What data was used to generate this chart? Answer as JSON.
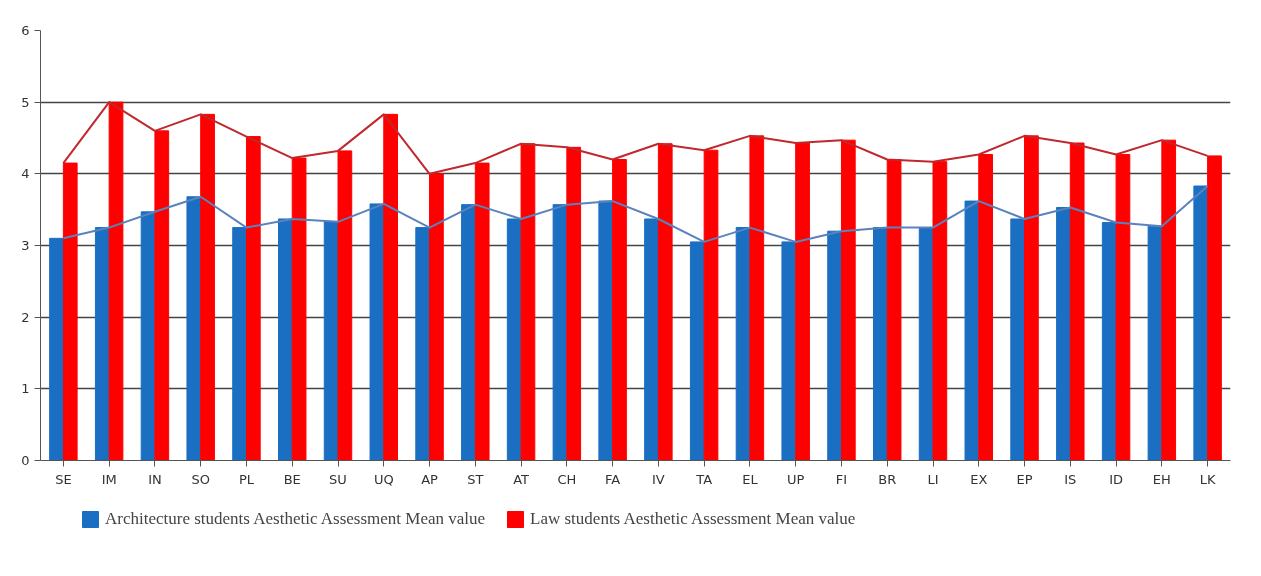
{
  "chart_data": {
    "type": "bar",
    "categories": [
      "SE",
      "IM",
      "IN",
      "SO",
      "PL",
      "BE",
      "SU",
      "UQ",
      "AP",
      "ST",
      "AT",
      "CH",
      "FA",
      "IV",
      "TA",
      "EL",
      "UP",
      "FI",
      "BR",
      "LI",
      "EX",
      "EP",
      "IS",
      "ID",
      "EH",
      "LK"
    ],
    "series": [
      {
        "name": "Architecture students Aesthetic Assessment Mean value",
        "color": "#1b6fc2",
        "values": [
          3.1,
          3.25,
          3.47,
          3.68,
          3.25,
          3.37,
          3.33,
          3.58,
          3.25,
          3.57,
          3.37,
          3.57,
          3.62,
          3.37,
          3.05,
          3.25,
          3.05,
          3.2,
          3.25,
          3.25,
          3.62,
          3.37,
          3.53,
          3.32,
          3.27,
          3.83
        ]
      },
      {
        "name": "Law students Aesthetic Assessment Mean value",
        "color": "#ff0000",
        "values": [
          4.15,
          5.0,
          4.6,
          4.83,
          4.52,
          4.22,
          4.32,
          4.83,
          4.0,
          4.15,
          4.42,
          4.37,
          4.2,
          4.42,
          4.33,
          4.53,
          4.43,
          4.47,
          4.2,
          4.17,
          4.27,
          4.53,
          4.43,
          4.27,
          4.47,
          4.25
        ]
      },
      {
        "type": "line",
        "color": "#5a83bd",
        "values": [
          3.1,
          3.25,
          3.47,
          3.68,
          3.25,
          3.37,
          3.33,
          3.58,
          3.25,
          3.57,
          3.37,
          3.57,
          3.62,
          3.37,
          3.05,
          3.25,
          3.05,
          3.2,
          3.25,
          3.25,
          3.62,
          3.37,
          3.53,
          3.32,
          3.27,
          3.83
        ]
      },
      {
        "type": "line",
        "color": "#c0282d",
        "values": [
          4.15,
          5.0,
          4.6,
          4.83,
          4.52,
          4.22,
          4.32,
          4.83,
          4.0,
          4.15,
          4.42,
          4.37,
          4.2,
          4.42,
          4.33,
          4.53,
          4.43,
          4.47,
          4.2,
          4.17,
          4.27,
          4.53,
          4.43,
          4.27,
          4.47,
          4.25
        ]
      }
    ],
    "ylim": [
      0,
      6
    ],
    "yticks": [
      0,
      1,
      2,
      3,
      4,
      5,
      6
    ],
    "grid": "y",
    "legend": "bottom",
    "marker": "none"
  }
}
